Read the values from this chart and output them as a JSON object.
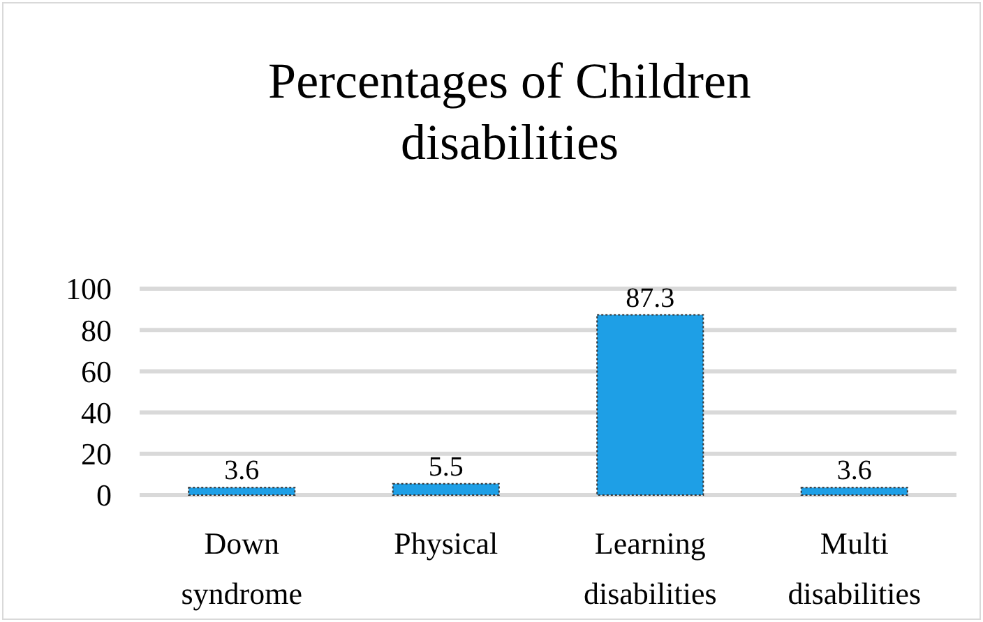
{
  "chart_data": {
    "type": "bar",
    "title": "Percentages  of Children disabilities",
    "categories": [
      "Down syndrome",
      "Physical",
      "Learning disabilities",
      "Multi disabilities"
    ],
    "values": [
      3.6,
      5.5,
      87.3,
      3.6
    ],
    "color": "#1e9fe6",
    "ylim": [
      0,
      100
    ],
    "yticks": [
      0,
      20,
      40,
      60,
      80,
      100
    ],
    "grid": "y",
    "data_labels": true
  }
}
